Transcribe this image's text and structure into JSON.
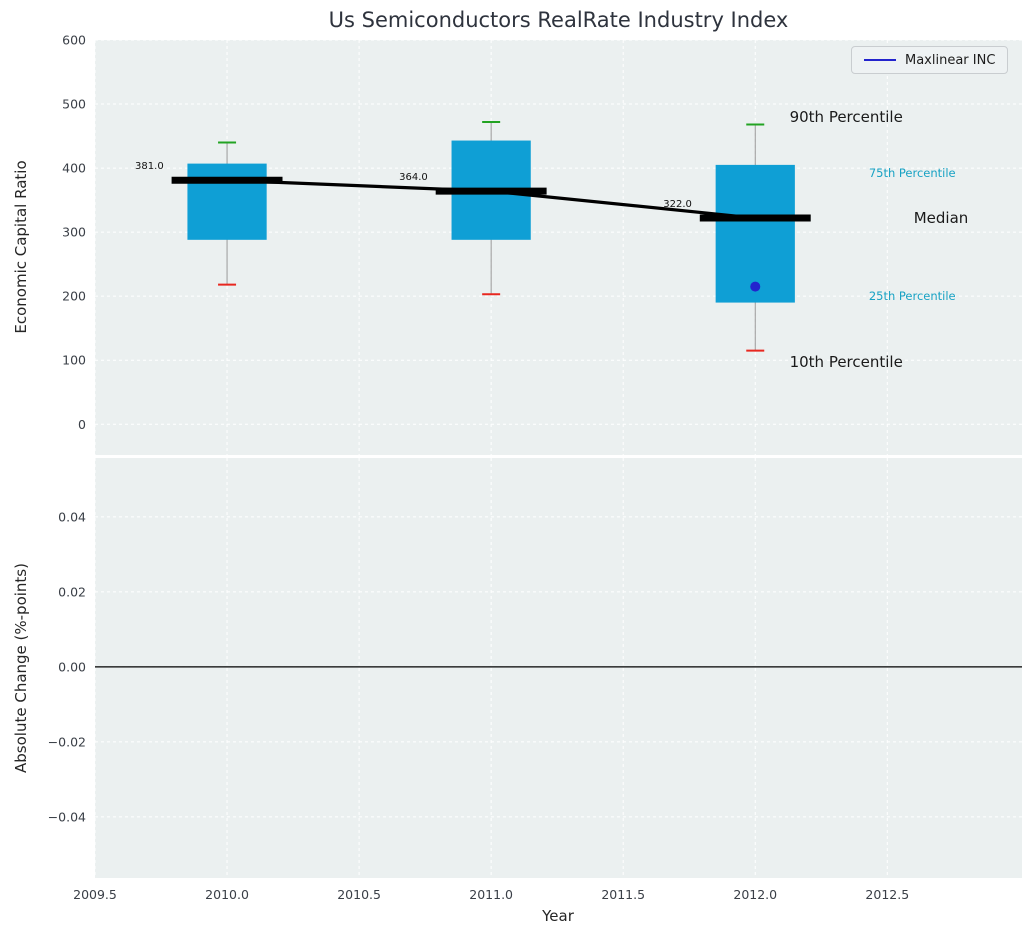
{
  "chart_data": {
    "type": "boxplot-with-median-trend",
    "title": "Us Semiconductors RealRate Industry Index",
    "xlabel": "Year",
    "x": [
      2010,
      2011,
      2012
    ],
    "xlim": [
      2009.5,
      2013.01
    ],
    "xticks": [
      2009.5,
      2010.0,
      2010.5,
      2011.0,
      2011.5,
      2012.0,
      2012.5
    ],
    "xtick_labels": [
      "2009.5",
      "2010.0",
      "2010.5",
      "2011.0",
      "2011.5",
      "2012.0",
      "2012.5"
    ],
    "grid": true,
    "legend": {
      "label": "Maxlinear INC",
      "position": "upper right"
    },
    "top_panel": {
      "ylabel": "Economic Capital Ratio",
      "ylim": [
        -48,
        600
      ],
      "yticks": [
        0,
        100,
        200,
        300,
        400,
        500,
        600
      ],
      "ytick_labels": [
        "0",
        "100",
        "200",
        "300",
        "400",
        "500",
        "600"
      ],
      "series": [
        {
          "name": "10th Percentile",
          "values": [
            218,
            203,
            115
          ]
        },
        {
          "name": "25th Percentile",
          "values": [
            288,
            288,
            190
          ]
        },
        {
          "name": "Median",
          "values": [
            381,
            364,
            322
          ]
        },
        {
          "name": "75th Percentile",
          "values": [
            407,
            443,
            405
          ]
        },
        {
          "name": "90th Percentile",
          "values": [
            440,
            472,
            468
          ]
        }
      ],
      "median_labels": [
        "381.0",
        "364.0",
        "322.0"
      ],
      "company_point": {
        "name": "Maxlinear INC",
        "x": 2012,
        "y": 215
      }
    },
    "bottom_panel": {
      "ylabel": "Absolute Change (%-points)",
      "ylim": [
        -0.0563,
        0.0557
      ],
      "yticks": [
        -0.04,
        -0.02,
        0.0,
        0.02,
        0.04
      ],
      "ytick_labels": [
        "−0.04",
        "−0.02",
        "0.00",
        "0.02",
        "0.04"
      ],
      "zero_line": 0.0
    },
    "annotations": [
      {
        "text": "90th Percentile",
        "x": 2012.13,
        "y": 480,
        "color": "#1a1a1a",
        "size": 15
      },
      {
        "text": "75th Percentile",
        "x": 2012.43,
        "y": 392,
        "color": "#18a2c4",
        "size": 11.5
      },
      {
        "text": "Median",
        "x": 2012.6,
        "y": 322,
        "color": "#1a1a1a",
        "size": 15
      },
      {
        "text": "25th Percentile",
        "x": 2012.43,
        "y": 200,
        "color": "#18a2c4",
        "size": 11.5
      },
      {
        "text": "10th Percentile",
        "x": 2012.13,
        "y": 97,
        "color": "#1a1a1a",
        "size": 15
      }
    ]
  },
  "colors": {
    "figure_background": "#ffffff",
    "panel_background": "#ebf0f0",
    "gridline": "#ffffff",
    "box_fill": "#0f9fd5",
    "whisker": "#999999",
    "cap_90th": "#22a322",
    "cap_10th": "#e8271f",
    "median_line": "#000000",
    "company_point": "#2323cd",
    "legend_line": "#2323cd",
    "annotation_teal": "#18a2c4",
    "tick_label": "#3a3f47",
    "title_color": "#2e333d",
    "zero_line": "#000000"
  }
}
